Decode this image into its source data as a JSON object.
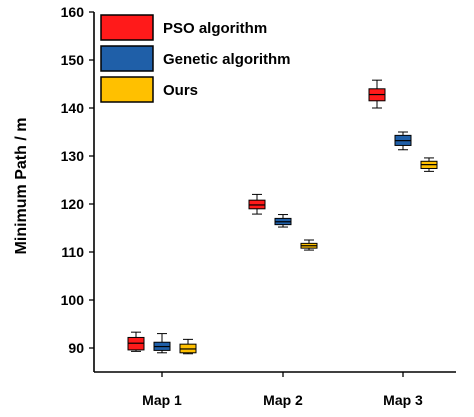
{
  "chart_data": {
    "type": "box",
    "ylabel": "Minimum Path / m",
    "xlabel": "",
    "ylim": [
      85,
      160
    ],
    "yticks": [
      90,
      100,
      110,
      120,
      130,
      140,
      150,
      160
    ],
    "categories": [
      "Map 1",
      "Map 2",
      "Map 3"
    ],
    "legend_position": "top-left",
    "series": [
      {
        "name": "PSO algorithm",
        "color": "#ff1a1a",
        "boxes": [
          {
            "whisker_low": 89.3,
            "q1": 89.6,
            "median": 91.0,
            "q3": 92.2,
            "whisker_high": 93.3
          },
          {
            "whisker_low": 117.9,
            "q1": 119.0,
            "median": 119.8,
            "q3": 120.8,
            "whisker_high": 122.0
          },
          {
            "whisker_low": 140.0,
            "q1": 141.5,
            "median": 142.8,
            "q3": 144.0,
            "whisker_high": 145.8
          }
        ]
      },
      {
        "name": "Genetic algorithm",
        "color": "#1f5fa8",
        "boxes": [
          {
            "whisker_low": 89.0,
            "q1": 89.5,
            "median": 90.3,
            "q3": 91.2,
            "whisker_high": 93.0
          },
          {
            "whisker_low": 115.2,
            "q1": 115.7,
            "median": 116.3,
            "q3": 117.0,
            "whisker_high": 117.8
          },
          {
            "whisker_low": 131.3,
            "q1": 132.2,
            "median": 133.2,
            "q3": 134.3,
            "whisker_high": 135.0
          }
        ]
      },
      {
        "name": "Ours",
        "color": "#ffc000",
        "boxes": [
          {
            "whisker_low": 88.8,
            "q1": 89.0,
            "median": 89.8,
            "q3": 90.8,
            "whisker_high": 91.8
          },
          {
            "whisker_low": 110.4,
            "q1": 110.8,
            "median": 111.3,
            "q3": 111.8,
            "whisker_high": 112.5
          },
          {
            "whisker_low": 126.8,
            "q1": 127.4,
            "median": 128.2,
            "q3": 128.9,
            "whisker_high": 129.6
          }
        ]
      }
    ]
  }
}
